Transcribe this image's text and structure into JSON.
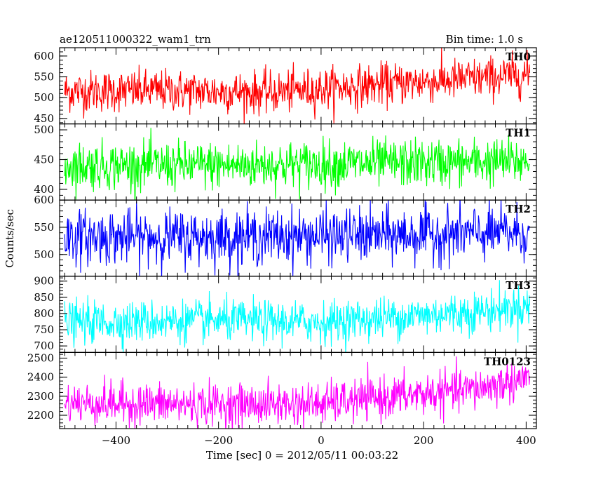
{
  "header": {
    "title": "ae120511000322_wam1_trn",
    "bin_time": "Bin time: 1.0 s"
  },
  "chart_data": {
    "type": "line",
    "xlabel": "Time [sec] 0 = 2012/05/11 00:03:22",
    "ylabel": "Counts/sec",
    "xlim": [
      -510,
      420
    ],
    "x_ticks": [
      -400,
      -200,
      0,
      200,
      400
    ],
    "x_tick_labels": [
      "−400",
      "−200",
      "0",
      "200",
      "400"
    ],
    "time_range": [
      -500,
      407
    ],
    "grid": false,
    "panels": [
      {
        "name": "TH0",
        "color": "#ff0000",
        "ylim": [
          437,
          620
        ],
        "y_ticks": [
          450,
          500,
          550,
          600
        ],
        "y_tick_labels": [
          "450",
          "500",
          "550",
          "600"
        ],
        "trend": [
          [
            -500,
            515
          ],
          [
            -300,
            517
          ],
          [
            -100,
            512
          ],
          [
            100,
            530
          ],
          [
            250,
            542
          ],
          [
            407,
            555
          ]
        ],
        "noise_sd": 25
      },
      {
        "name": "TH1",
        "color": "#00ff00",
        "ylim": [
          382,
          510
        ],
        "y_ticks": [
          400,
          450,
          500
        ],
        "y_tick_labels": [
          "400",
          "450",
          "500"
        ],
        "trend": [
          [
            -500,
            440
          ],
          [
            -200,
            440
          ],
          [
            100,
            443
          ],
          [
            407,
            447
          ]
        ],
        "noise_sd": 20
      },
      {
        "name": "TH2",
        "color": "#0000ff",
        "ylim": [
          460,
          600
        ],
        "y_ticks": [
          500,
          550,
          600
        ],
        "y_tick_labels": [
          "500",
          "550",
          "600"
        ],
        "trend": [
          [
            -500,
            532
          ],
          [
            -200,
            532
          ],
          [
            100,
            535
          ],
          [
            407,
            540
          ]
        ],
        "noise_sd": 25
      },
      {
        "name": "TH3",
        "color": "#00ffff",
        "ylim": [
          680,
          915
        ],
        "y_ticks": [
          700,
          750,
          800,
          850,
          900
        ],
        "y_tick_labels": [
          "700",
          "750",
          "800",
          "850",
          "900"
        ],
        "trend": [
          [
            -500,
            772
          ],
          [
            -200,
            778
          ],
          [
            0,
            773
          ],
          [
            150,
            790
          ],
          [
            300,
            805
          ],
          [
            407,
            822
          ]
        ],
        "noise_sd": 32
      },
      {
        "name": "TH0123",
        "color": "#ff00ff",
        "ylim": [
          2130,
          2530
        ],
        "y_ticks": [
          2200,
          2300,
          2400,
          2500
        ],
        "y_tick_labels": [
          "2200",
          "2300",
          "2400",
          "2500"
        ],
        "trend": [
          [
            -500,
            2265
          ],
          [
            -200,
            2255
          ],
          [
            0,
            2260
          ],
          [
            150,
            2300
          ],
          [
            300,
            2335
          ],
          [
            407,
            2400
          ]
        ],
        "noise_sd": 55
      }
    ]
  }
}
